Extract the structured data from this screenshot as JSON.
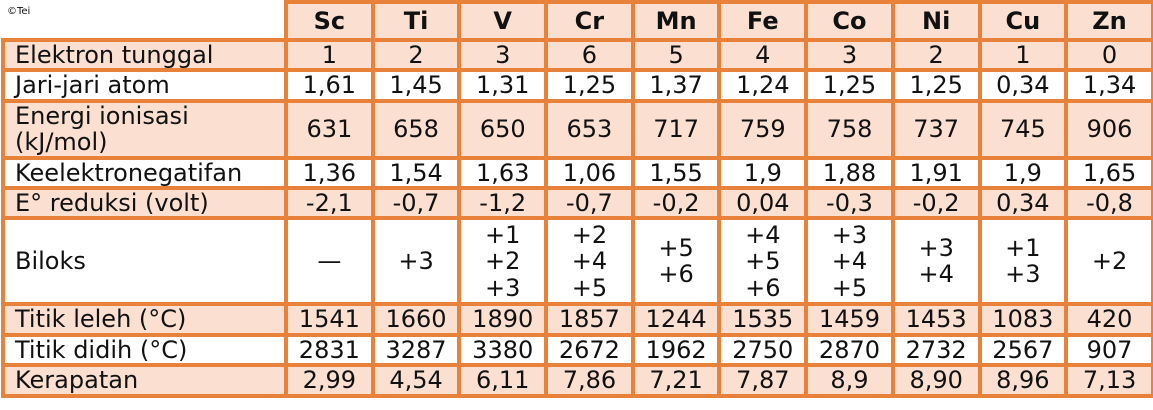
{
  "table": {
    "corner": "©Tei",
    "columns": [
      "Sc",
      "Ti",
      "V",
      "Cr",
      "Mn",
      "Fe",
      "Co",
      "Ni",
      "Cu",
      "Zn"
    ],
    "rows": [
      {
        "label": [
          "Elektron tunggal"
        ],
        "values": [
          "1",
          "2",
          "3",
          "6",
          "5",
          "4",
          "3",
          "2",
          "1",
          "0"
        ]
      },
      {
        "label": [
          "Jari-jari atom"
        ],
        "values": [
          "1,61",
          "1,45",
          "1,31",
          "1,25",
          "1,37",
          "1,24",
          "1,25",
          "1,25",
          "0,34",
          "1,34"
        ]
      },
      {
        "label": [
          "Energi ionisasi",
          "(kJ/mol)"
        ],
        "values": [
          "631",
          "658",
          "650",
          "653",
          "717",
          "759",
          "758",
          "737",
          "745",
          "906"
        ]
      },
      {
        "label": [
          "Keelektronegatifan"
        ],
        "values": [
          "1,36",
          "1,54",
          "1,63",
          "1,06",
          "1,55",
          "1,9",
          "1,88",
          "1,91",
          "1,9",
          "1,65"
        ]
      },
      {
        "label": [
          "E° reduksi (volt)"
        ],
        "values": [
          "-2,1",
          "-0,7",
          "-1,2",
          "-0,7",
          "-0,2",
          "0,04",
          "-0,3",
          "-0,2",
          "0,34",
          "-0,8"
        ]
      },
      {
        "label": [
          "Biloks"
        ],
        "values": [
          [
            "—"
          ],
          [
            "+3"
          ],
          [
            "+1",
            "+2",
            "+3"
          ],
          [
            "+2",
            "+4",
            "+5"
          ],
          [
            "+5",
            "+6"
          ],
          [
            "+4",
            "+5",
            "+6"
          ],
          [
            "+3",
            "+4",
            "+5"
          ],
          [
            "+3",
            "+4"
          ],
          [
            "+1",
            "+3"
          ],
          [
            "+2"
          ]
        ]
      },
      {
        "label": [
          "Titik leleh (°C)"
        ],
        "values": [
          "1541",
          "1660",
          "1890",
          "1857",
          "1244",
          "1535",
          "1459",
          "1453",
          "1083",
          "420"
        ]
      },
      {
        "label": [
          "Titik didih (°C)"
        ],
        "values": [
          "2831",
          "3287",
          "3380",
          "2672",
          "1962",
          "2750",
          "2870",
          "2732",
          "2567",
          "907"
        ]
      },
      {
        "label": [
          "Kerapatan"
        ],
        "values": [
          "2,99",
          "4,54",
          "6,11",
          "7,86",
          "7,21",
          "7,87",
          "8,9",
          "8,90",
          "8,96",
          "7,13"
        ]
      }
    ]
  }
}
